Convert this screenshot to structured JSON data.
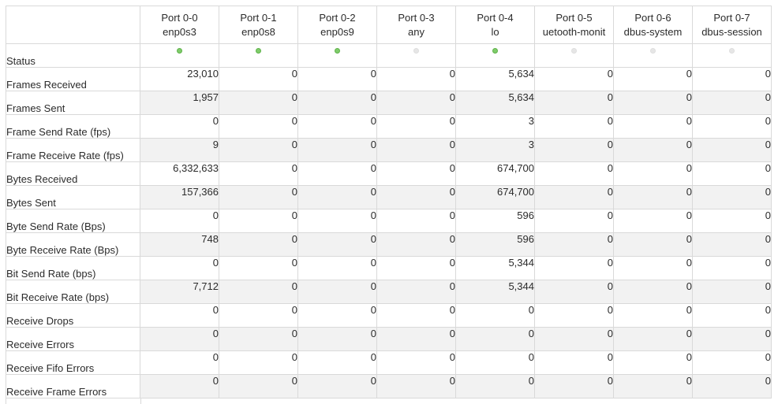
{
  "ports": [
    {
      "name": "Port 0-0",
      "iface": "enp0s3",
      "status": "up"
    },
    {
      "name": "Port 0-1",
      "iface": "enp0s8",
      "status": "up"
    },
    {
      "name": "Port 0-2",
      "iface": "enp0s9",
      "status": "up"
    },
    {
      "name": "Port 0-3",
      "iface": "any",
      "status": "down"
    },
    {
      "name": "Port 0-4",
      "iface": "lo",
      "status": "up"
    },
    {
      "name": "Port 0-5",
      "iface": "uetooth-monit",
      "status": "down"
    },
    {
      "name": "Port 0-6",
      "iface": "dbus-system",
      "status": "down"
    },
    {
      "name": "Port 0-7",
      "iface": "dbus-session",
      "status": "down"
    }
  ],
  "status_label": "Status",
  "colors": {
    "status_up": "#7fcc6a",
    "status_down": "#e6e6e6",
    "row_shade": "#f2f2f2",
    "grid": "#d9d9d9"
  },
  "rows": [
    {
      "label": "Frames Received",
      "values": [
        "23,010",
        "0",
        "0",
        "0",
        "5,634",
        "0",
        "0",
        "0"
      ]
    },
    {
      "label": "Frames Sent",
      "values": [
        "1,957",
        "0",
        "0",
        "0",
        "5,634",
        "0",
        "0",
        "0"
      ]
    },
    {
      "label": "Frame Send Rate (fps)",
      "values": [
        "0",
        "0",
        "0",
        "0",
        "3",
        "0",
        "0",
        "0"
      ]
    },
    {
      "label": "Frame Receive Rate (fps)",
      "values": [
        "9",
        "0",
        "0",
        "0",
        "3",
        "0",
        "0",
        "0"
      ]
    },
    {
      "label": "Bytes Received",
      "values": [
        "6,332,633",
        "0",
        "0",
        "0",
        "674,700",
        "0",
        "0",
        "0"
      ]
    },
    {
      "label": "Bytes Sent",
      "values": [
        "157,366",
        "0",
        "0",
        "0",
        "674,700",
        "0",
        "0",
        "0"
      ]
    },
    {
      "label": "Byte Send Rate (Bps)",
      "values": [
        "0",
        "0",
        "0",
        "0",
        "596",
        "0",
        "0",
        "0"
      ]
    },
    {
      "label": "Byte Receive Rate (Bps)",
      "values": [
        "748",
        "0",
        "0",
        "0",
        "596",
        "0",
        "0",
        "0"
      ]
    },
    {
      "label": "Bit Send Rate (bps)",
      "values": [
        "0",
        "0",
        "0",
        "0",
        "5,344",
        "0",
        "0",
        "0"
      ]
    },
    {
      "label": "Bit Receive Rate (bps)",
      "values": [
        "7,712",
        "0",
        "0",
        "0",
        "5,344",
        "0",
        "0",
        "0"
      ]
    },
    {
      "label": "Receive Drops",
      "values": [
        "0",
        "0",
        "0",
        "0",
        "0",
        "0",
        "0",
        "0"
      ]
    },
    {
      "label": "Receive Errors",
      "values": [
        "0",
        "0",
        "0",
        "0",
        "0",
        "0",
        "0",
        "0"
      ]
    },
    {
      "label": "Receive Fifo Errors",
      "values": [
        "0",
        "0",
        "0",
        "0",
        "0",
        "0",
        "0",
        "0"
      ]
    },
    {
      "label": "Receive Frame Errors",
      "values": [
        "0",
        "0",
        "0",
        "0",
        "0",
        "0",
        "0",
        "0"
      ]
    }
  ]
}
